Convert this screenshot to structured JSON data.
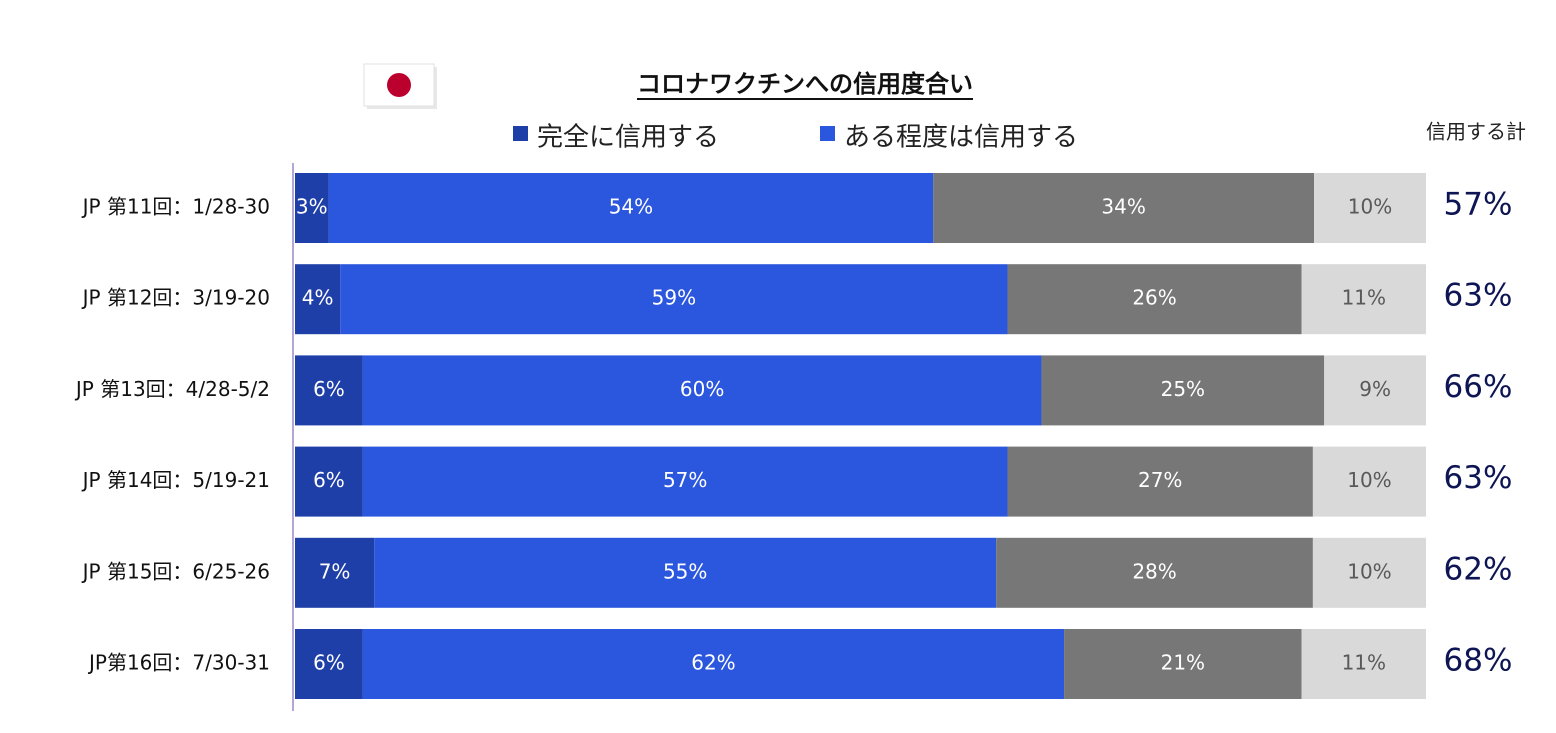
{
  "chart_data": {
    "type": "stacked_bar_100",
    "title": "コロナワクチンへの信用度合い",
    "categories": [
      "JP 第11回：1/28-30",
      "JP 第12回：3/19-20",
      "JP 第13回：4/28-5/2",
      "JP 第14回：5/19-21",
      "JP 第15回：6/25-26",
      "JP第16回：7/30-31"
    ],
    "series": [
      {
        "name": "完全に信用する",
        "color": "#1f3fa8",
        "label_color": "#ffffff",
        "values": [
          3,
          4,
          6,
          6,
          7,
          6
        ],
        "value_labels": [
          "3%",
          "4%",
          "6%",
          "6%",
          "7%",
          "6%"
        ]
      },
      {
        "name": "ある程度は信用する",
        "color": "#2b56de",
        "label_color": "#ffffff",
        "values": [
          54,
          59,
          60,
          57,
          55,
          62
        ],
        "value_labels": [
          "54%",
          "59%",
          "60%",
          "57%",
          "55%",
          "62%"
        ]
      },
      {
        "color": "#777777",
        "label_color": "#ffffff",
        "values": [
          34,
          26,
          25,
          27,
          28,
          21
        ],
        "value_labels": [
          "34%",
          "26%",
          "25%",
          "27%",
          "28%",
          "21%"
        ]
      },
      {
        "color": "#d9d9d9",
        "label_color": "#595959",
        "values": [
          10,
          11,
          9,
          10,
          10,
          11
        ],
        "value_labels": [
          "10%",
          "11%",
          "9%",
          "10%",
          "10%",
          "11%"
        ]
      }
    ],
    "totals": {
      "title": "信用する計",
      "color": "#0d1554",
      "values": [
        57,
        63,
        66,
        63,
        62,
        68
      ],
      "value_labels": [
        "57%",
        "63%",
        "66%",
        "63%",
        "62%",
        "68%"
      ]
    }
  }
}
